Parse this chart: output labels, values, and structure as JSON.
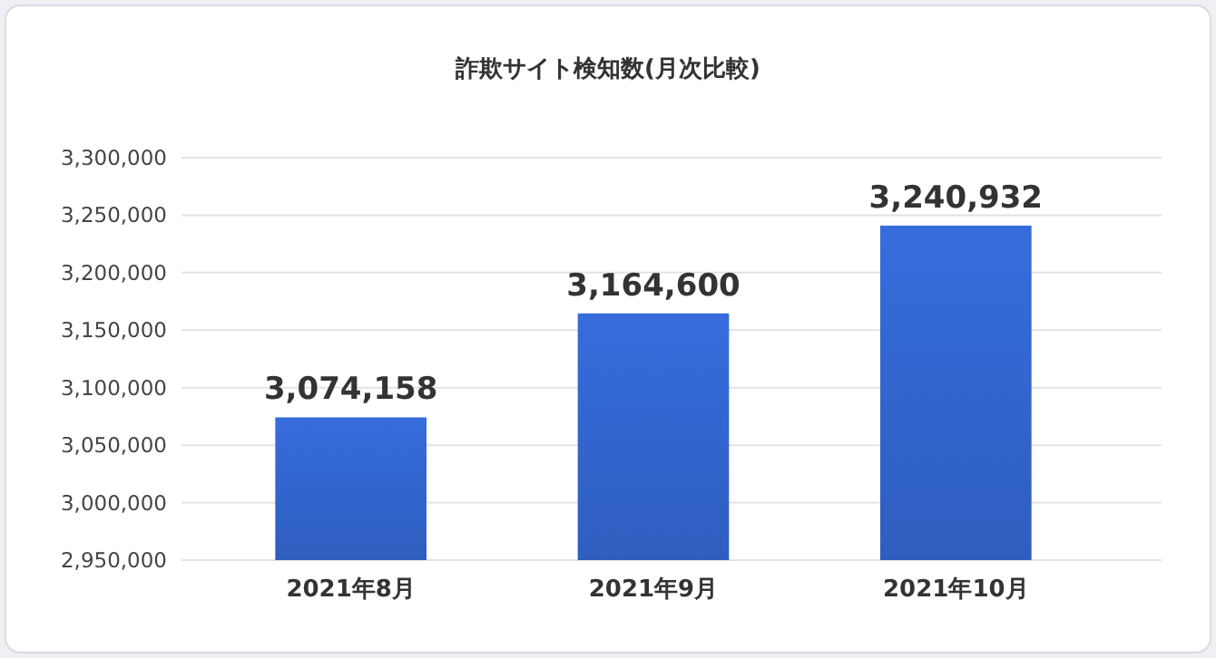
{
  "chart_data": {
    "type": "bar",
    "title": "詐欺サイト検知数(月次比較)",
    "categories": [
      "2021年8月",
      "2021年9月",
      "2021年10月"
    ],
    "values": [
      3074158,
      3164600,
      3240932
    ],
    "color": "#2f5ebf",
    "ylim": [
      2950000,
      3300000
    ],
    "yticks": [
      {
        "value": 2950000,
        "label": "2,950,000"
      },
      {
        "value": 3000000,
        "label": "3,000,000"
      },
      {
        "value": 3050000,
        "label": "3,050,000"
      },
      {
        "value": 3100000,
        "label": "3,100,000"
      },
      {
        "value": 3150000,
        "label": "3,150,000"
      },
      {
        "value": 3200000,
        "label": "3,200,000"
      },
      {
        "value": 3250000,
        "label": "3,250,000"
      },
      {
        "value": 3300000,
        "label": "3,300,000"
      }
    ],
    "value_labels": [
      "3,074,158",
      "3,164,600",
      "3,240,932"
    ],
    "grid": "y"
  }
}
